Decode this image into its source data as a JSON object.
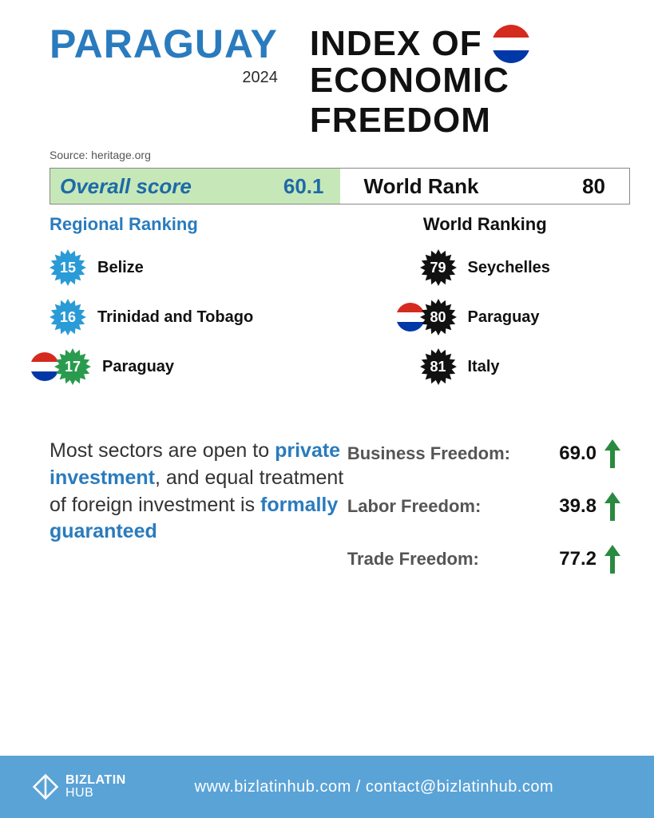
{
  "header": {
    "country": "PARAGUAY",
    "year": "2024",
    "title_line1": "INDEX OF",
    "title_line2": "ECONOMIC FREEDOM",
    "flag_colors": [
      "#d52b1e",
      "#ffffff",
      "#0038a8"
    ]
  },
  "source": "Source: heritage.org",
  "scorebar": {
    "overall_label": "Overall score",
    "overall_value": "60.1",
    "rank_label": "World Rank",
    "rank_value": "80",
    "left_bg": "#c6e8b8",
    "border": "#888888",
    "accent": "#1e6aa8"
  },
  "regional": {
    "heading": "Regional Ranking",
    "heading_color": "#2a7bbd",
    "badge_color": "#2a9bd6",
    "highlight_badge_color": "#2a9b4e",
    "items": [
      {
        "rank": "15",
        "name": "Belize",
        "highlight": false
      },
      {
        "rank": "16",
        "name": "Trinidad and Tobago",
        "highlight": false
      },
      {
        "rank": "17",
        "name": "Paraguay",
        "highlight": true
      }
    ]
  },
  "world": {
    "heading": "World Ranking",
    "badge_color": "#111111",
    "items": [
      {
        "rank": "79",
        "name": "Seychelles",
        "highlight": false
      },
      {
        "rank": "80",
        "name": "Paraguay",
        "highlight": true
      },
      {
        "rank": "81",
        "name": "Italy",
        "highlight": false
      }
    ]
  },
  "blurb": {
    "pre1": "Most sectors are open to ",
    "hl1": "private investment",
    "mid": ", and equal treatment of foreign investment is ",
    "hl2": "formally guaranteed"
  },
  "metrics": {
    "arrow_color": "#2a8a3f",
    "items": [
      {
        "label": "Business Freedom:",
        "value": "69.0"
      },
      {
        "label": "Labor Freedom:",
        "value": "39.8"
      },
      {
        "label": "Trade Freedom:",
        "value": "77.2"
      }
    ]
  },
  "footer": {
    "bg": "#5aa3d7",
    "brand_line1": "BIZLATIN",
    "brand_line2": "HUB",
    "website": "www.bizlatinhub.com",
    "sep": "  /  ",
    "email": "contact@bizlatinhub.com"
  }
}
